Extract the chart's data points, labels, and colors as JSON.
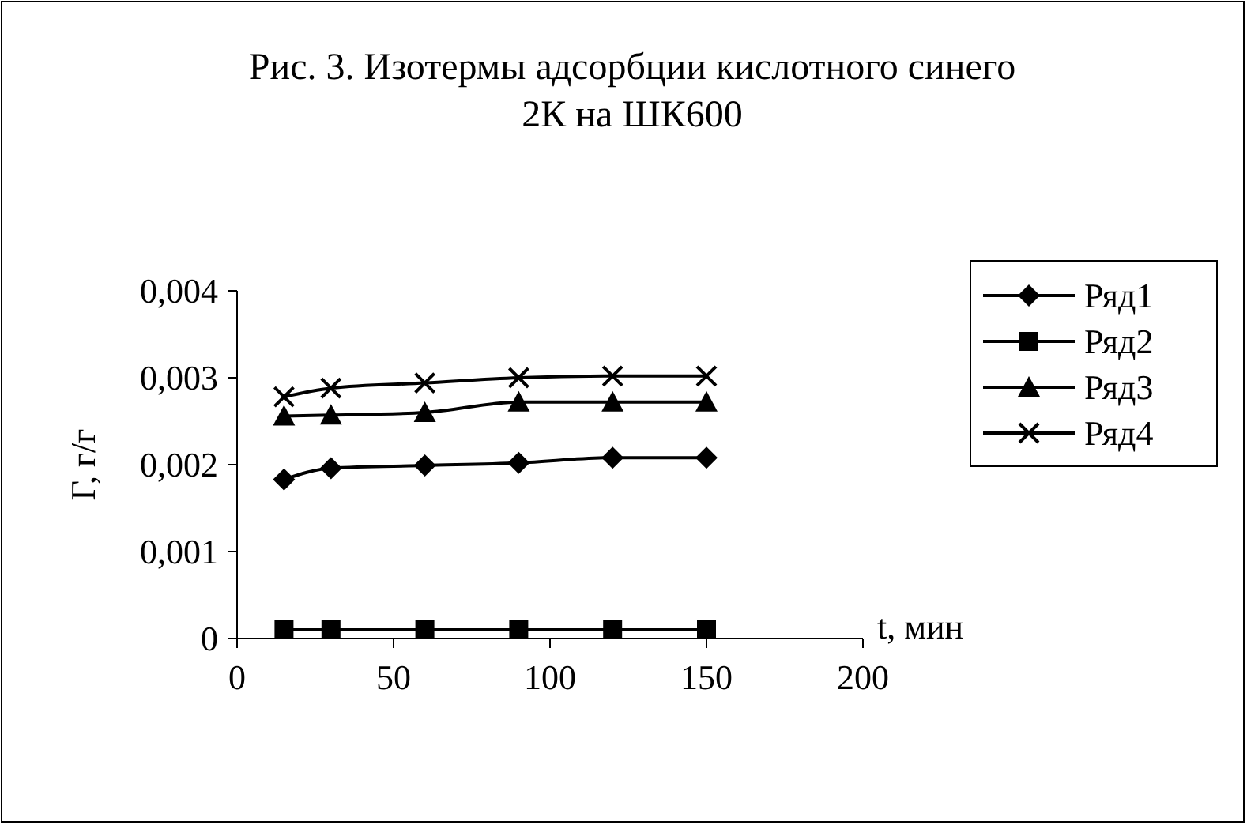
{
  "chart_data": {
    "type": "line",
    "title": "Рис. 3. Изотермы адсорбции кислотного синего 2К на ШК600",
    "xlabel": "t, мин",
    "ylabel": "Г, г/г",
    "x": [
      15,
      30,
      60,
      90,
      120,
      150
    ],
    "xlim": [
      0,
      200
    ],
    "xticks": [
      0,
      50,
      100,
      150,
      200
    ],
    "ylim": [
      0,
      0.004
    ],
    "yticks": [
      {
        "value": 0,
        "label": "0"
      },
      {
        "value": 0.001,
        "label": "0,001"
      },
      {
        "value": 0.002,
        "label": "0,002"
      },
      {
        "value": 0.003,
        "label": "0,003"
      },
      {
        "value": 0.004,
        "label": "0,004"
      }
    ],
    "grid": false,
    "legend": "right",
    "line_style": "solid",
    "series": [
      {
        "name": "Ряд1",
        "color": "#000000",
        "marker": "diamond",
        "values": [
          0.00183,
          0.00196,
          0.00199,
          0.00202,
          0.00208,
          0.00208
        ]
      },
      {
        "name": "Ряд2",
        "color": "#000000",
        "marker": "square",
        "values": [
          0.0001,
          0.0001,
          0.0001,
          0.0001,
          0.0001,
          0.0001
        ]
      },
      {
        "name": "Ряд3",
        "color": "#000000",
        "marker": "triangle",
        "values": [
          0.00256,
          0.00257,
          0.0026,
          0.00272,
          0.00272,
          0.00272
        ]
      },
      {
        "name": "Ряд4",
        "color": "#000000",
        "marker": "cross",
        "values": [
          0.00278,
          0.00288,
          0.00294,
          0.003,
          0.00302,
          0.00302
        ]
      }
    ]
  }
}
